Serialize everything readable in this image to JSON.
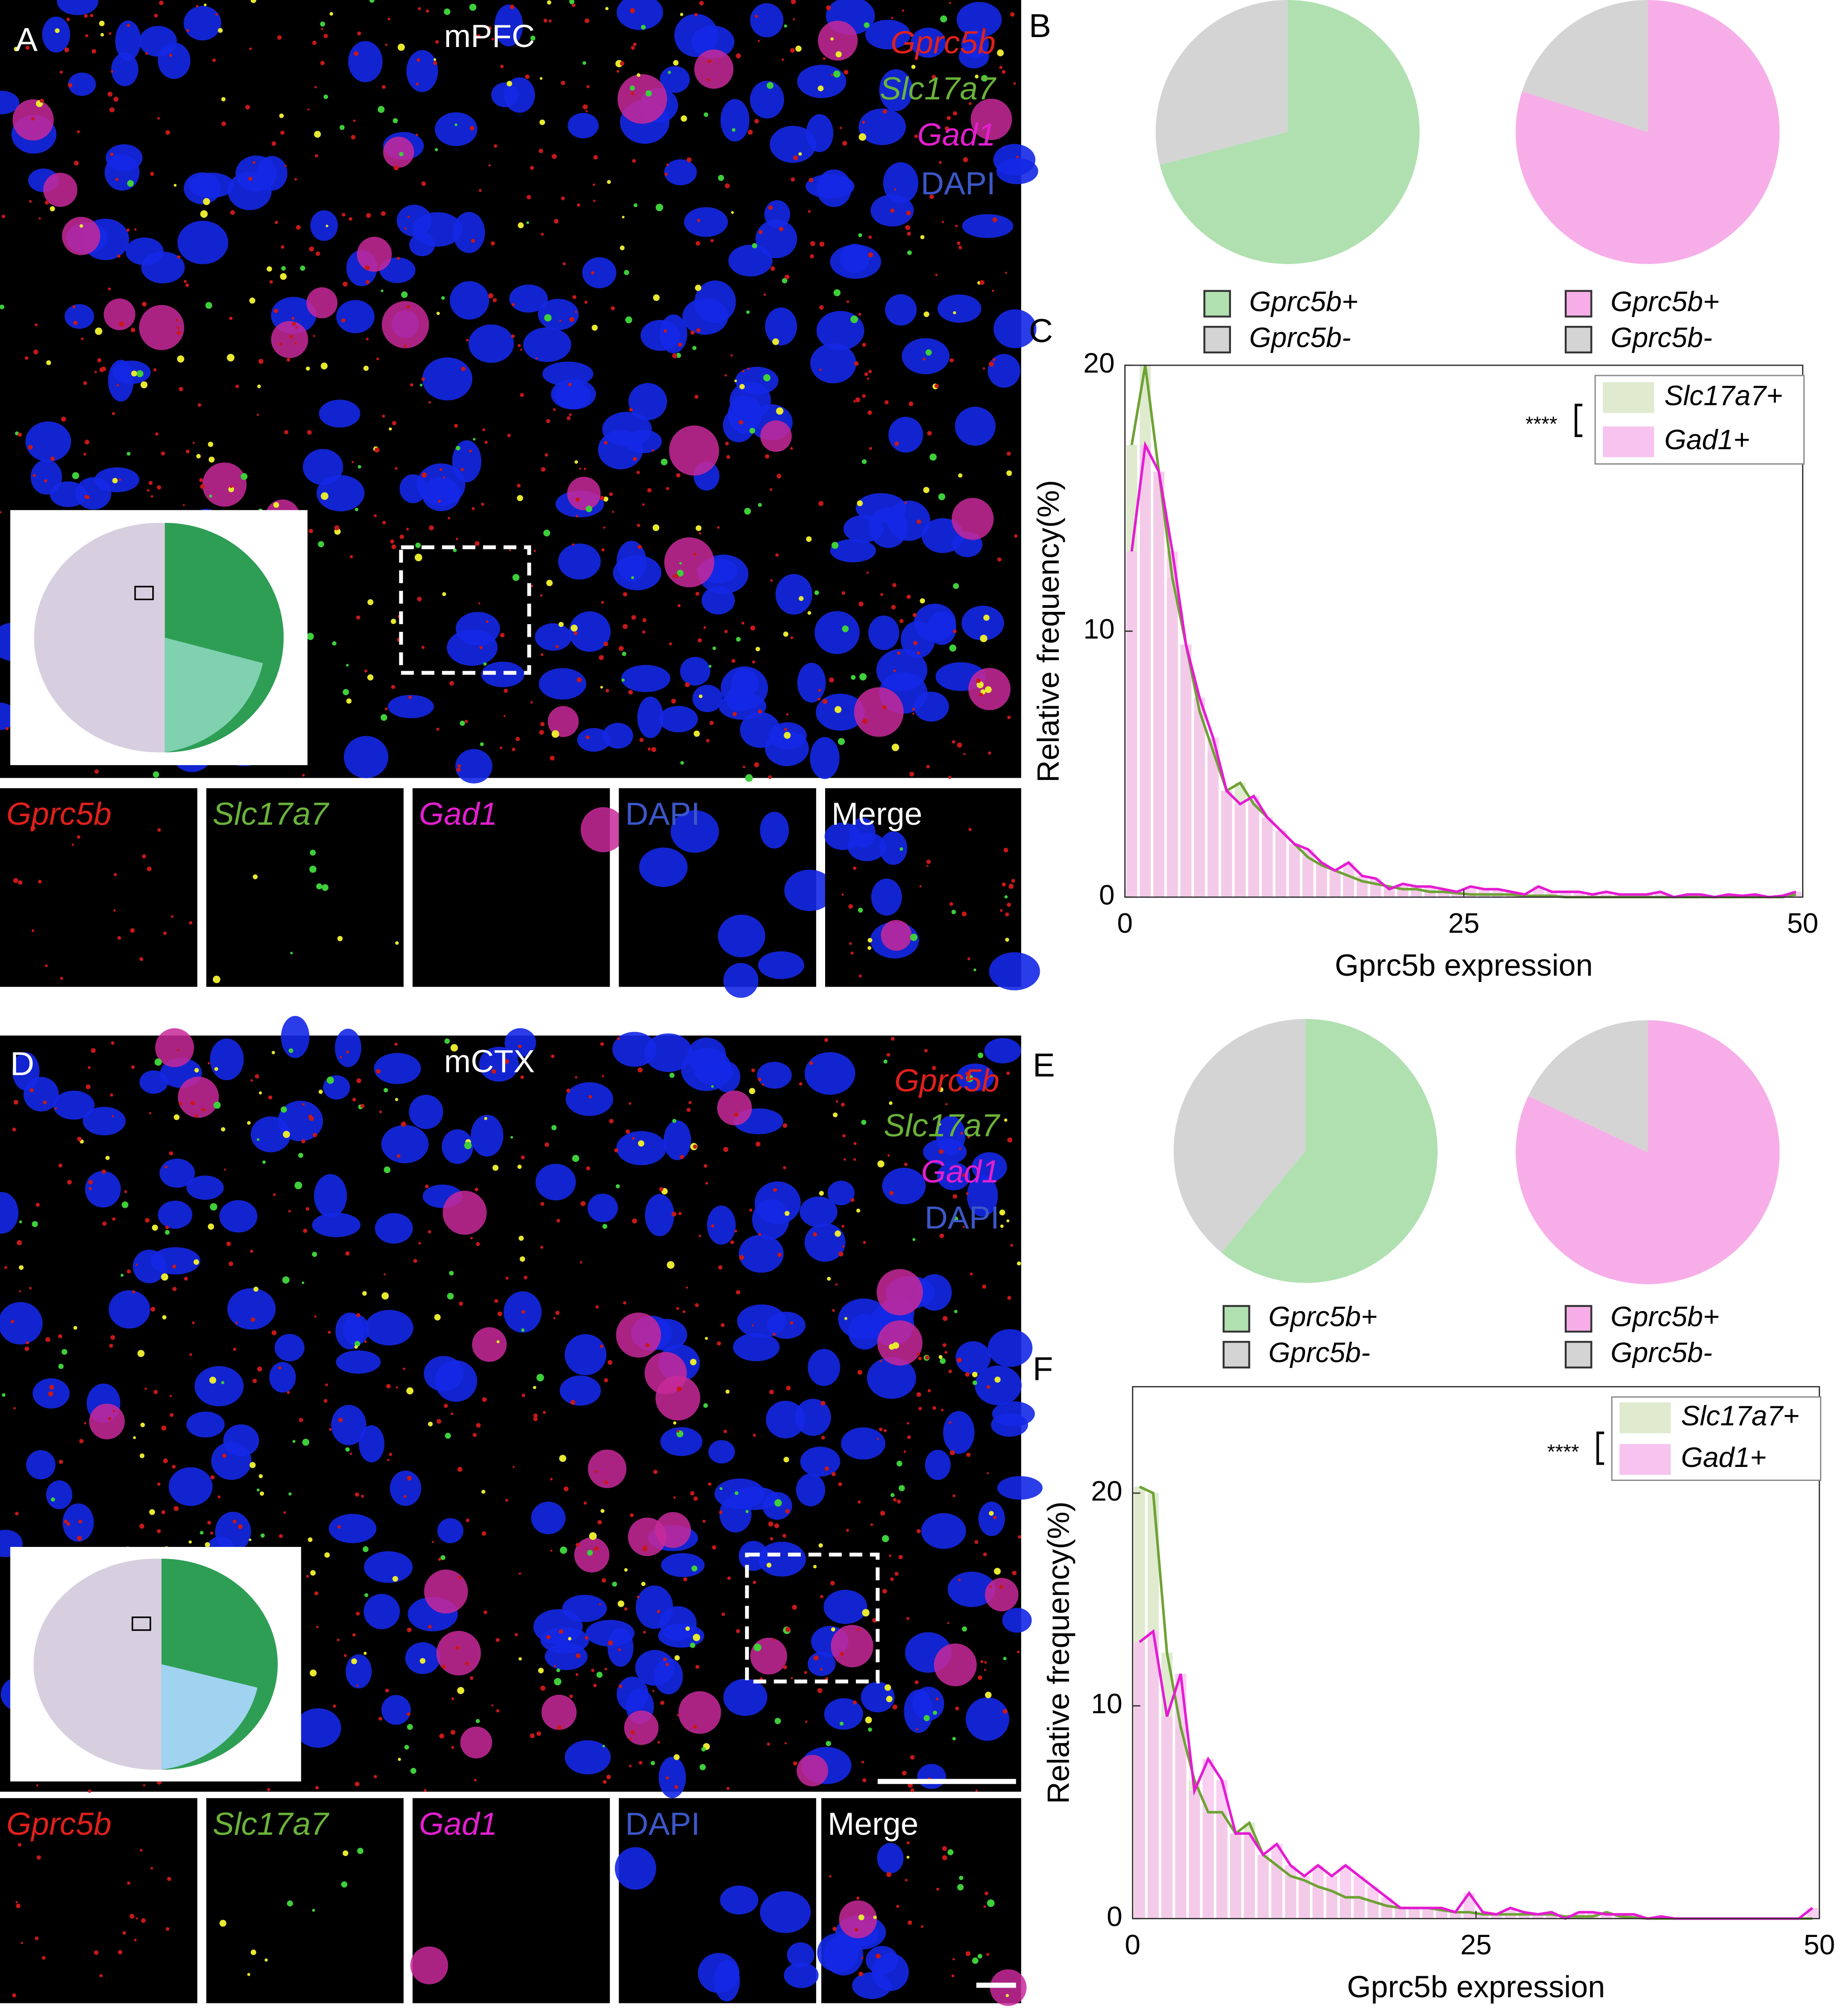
{
  "image_panels": [
    {
      "panel_label": "A",
      "region": "mPFC",
      "channels": [
        {
          "name": "Gprc5b",
          "color": "#e0201c"
        },
        {
          "name": "Slc17a7",
          "color": "#6bb33a"
        },
        {
          "name": "Gad1",
          "color": "#e31fcf"
        },
        {
          "name": "DAPI",
          "color": "#3b57c9"
        }
      ],
      "subpanels": [
        {
          "name": "Gprc5b",
          "color": "#e0201c"
        },
        {
          "name": "Slc17a7",
          "color": "#6bb33a"
        },
        {
          "name": "Gad1",
          "color": "#e31fcf"
        },
        {
          "name": "DAPI",
          "color": "#3b57c9"
        },
        {
          "name": "Merge",
          "color": "#ffffff"
        }
      ]
    },
    {
      "panel_label": "D",
      "region": "mCTX",
      "channels": [
        {
          "name": "Gprc5b",
          "color": "#e0201c"
        },
        {
          "name": "Slc17a7",
          "color": "#6bb33a"
        },
        {
          "name": "Gad1",
          "color": "#e31fcf"
        },
        {
          "name": "DAPI",
          "color": "#3b57c9"
        }
      ],
      "subpanels": [
        {
          "name": "Gprc5b",
          "color": "#e0201c"
        },
        {
          "name": "Slc17a7",
          "color": "#6bb33a"
        },
        {
          "name": "Gad1",
          "color": "#e31fcf"
        },
        {
          "name": "DAPI",
          "color": "#3b57c9"
        },
        {
          "name": "Merge",
          "color": "#ffffff"
        }
      ]
    }
  ],
  "chart_data": [
    {
      "type": "pie",
      "panel_label": "B",
      "categories": [
        "Gprc5b+",
        "Gprc5b-"
      ],
      "values": [
        71,
        29
      ],
      "colors": [
        "#b0e0b0",
        "#d4d4d4"
      ]
    },
    {
      "type": "pie",
      "categories": [
        "Gprc5b+",
        "Gprc5b-"
      ],
      "values": [
        80,
        20
      ],
      "colors": [
        "#f7aee8",
        "#d4d4d4"
      ]
    },
    {
      "type": "histogram",
      "panel_label": "C",
      "bins": [
        0,
        1,
        2,
        3,
        4,
        5,
        6,
        7,
        8,
        9,
        10,
        11,
        12,
        13,
        14,
        15,
        16,
        17,
        18,
        19,
        20,
        21,
        22,
        23,
        24,
        25,
        26,
        27,
        28,
        29,
        30,
        31,
        32,
        33,
        34,
        35,
        36,
        37,
        38,
        39,
        40,
        41,
        42,
        43,
        44,
        45,
        46,
        47,
        48,
        49,
        50
      ],
      "series": [
        {
          "name": "Slc17a7+",
          "color": "#6ea234",
          "fill": "#dfeacf",
          "values": [
            17,
            20,
            16,
            12,
            9.5,
            7,
            5.5,
            4,
            4.3,
            3.5,
            3,
            2.5,
            2,
            1.5,
            1.2,
            1,
            0.8,
            0.6,
            0.5,
            0.4,
            0.3,
            0.3,
            0.2,
            0.2,
            0.15,
            0.1,
            0.1,
            0.1,
            0.1,
            0.05,
            0.05,
            0.05,
            0,
            0,
            0,
            0,
            0,
            0,
            0,
            0,
            0,
            0,
            0,
            0,
            0,
            0,
            0,
            0,
            0,
            0.1
          ]
        },
        {
          "name": "Gad1+",
          "color": "#e51bd3",
          "fill": "#f7c3ef",
          "values": [
            13,
            17,
            16,
            13,
            9.5,
            7.5,
            6,
            4,
            3.5,
            3.8,
            3,
            2.5,
            2,
            1.8,
            1.3,
            1,
            1.3,
            0.8,
            0.7,
            0.3,
            0.5,
            0.4,
            0.4,
            0.3,
            0.2,
            0.4,
            0.3,
            0.3,
            0.2,
            0.1,
            0.4,
            0.2,
            0.2,
            0.2,
            0.1,
            0.2,
            0.1,
            0.1,
            0.1,
            0.2,
            0,
            0.1,
            0.1,
            0,
            0.1,
            0.05,
            0.1,
            0,
            0.05,
            0.2
          ]
        }
      ],
      "xlim": [
        0,
        50
      ],
      "ylim": [
        0,
        20
      ],
      "xticks": [
        0,
        25,
        50
      ],
      "yticks": [
        0,
        10,
        20
      ],
      "x_label": "Gprc5b expression",
      "y_label": "Relative frequency(%)",
      "annotation": "****"
    },
    {
      "type": "pie",
      "panel_label": "E",
      "categories": [
        "Gprc5b+",
        "Gprc5b-"
      ],
      "values": [
        61,
        39
      ],
      "colors": [
        "#b0e0b0",
        "#d4d4d4"
      ]
    },
    {
      "type": "pie",
      "categories": [
        "Gprc5b+",
        "Gprc5b-"
      ],
      "values": [
        82,
        18
      ],
      "colors": [
        "#f7aee8",
        "#d4d4d4"
      ]
    },
    {
      "type": "histogram",
      "panel_label": "F",
      "bins": [
        0,
        1,
        2,
        3,
        4,
        5,
        6,
        7,
        8,
        9,
        10,
        11,
        12,
        13,
        14,
        15,
        16,
        17,
        18,
        19,
        20,
        21,
        22,
        23,
        24,
        25,
        26,
        27,
        28,
        29,
        30,
        31,
        32,
        33,
        34,
        35,
        36,
        37,
        38,
        39,
        40,
        41,
        42,
        43,
        44,
        45,
        46,
        47,
        48,
        49,
        50
      ],
      "series": [
        {
          "name": "Slc17a7+",
          "color": "#6ea234",
          "fill": "#dfeacf",
          "values": [
            20.3,
            20,
            12.5,
            9,
            6.5,
            5,
            5,
            4,
            4.5,
            3,
            2.5,
            2,
            1.8,
            1.5,
            1.3,
            1,
            1,
            0.8,
            0.6,
            0.5,
            0.5,
            0.5,
            0.4,
            0.3,
            0.3,
            0.2,
            0.2,
            0.2,
            0.2,
            0.2,
            0.2,
            0.1,
            0.1,
            0.1,
            0.3,
            0.1,
            0.05,
            0,
            0,
            0,
            0,
            0,
            0,
            0,
            0,
            0,
            0,
            0,
            0,
            0
          ]
        },
        {
          "name": "Gad1+",
          "color": "#e51bd3",
          "fill": "#f7c3ef",
          "values": [
            13,
            13.5,
            9.5,
            11.5,
            6,
            7.5,
            6.5,
            4,
            4,
            3,
            3.5,
            2.5,
            2,
            2.5,
            2,
            2.5,
            2,
            1.5,
            1,
            0.5,
            0.5,
            0.5,
            0.5,
            0.3,
            1.2,
            0.3,
            0.2,
            0.5,
            0.3,
            0.2,
            0.3,
            0,
            0.3,
            0.3,
            0.2,
            0.2,
            0.2,
            0,
            0.1,
            0,
            0,
            0,
            0,
            0,
            0,
            0,
            0,
            0,
            0,
            0.5
          ]
        }
      ],
      "xlim": [
        0,
        50
      ],
      "ylim": [
        0,
        25
      ],
      "xticks": [
        0,
        25,
        50
      ],
      "yticks": [
        0,
        10,
        20
      ],
      "x_label": "Gprc5b expression",
      "y_label": "Relative frequency(%)",
      "annotation": "****"
    }
  ]
}
